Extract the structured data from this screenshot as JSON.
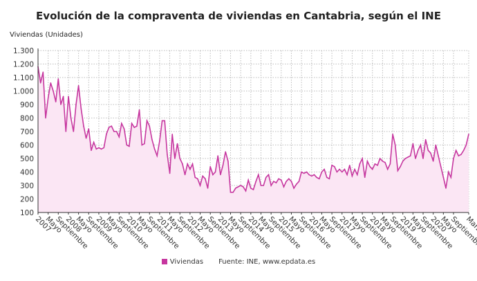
{
  "chart_data": {
    "type": "line",
    "title": "Evolución de la compraventa de viviendas en Cantabria, según el INE",
    "ylabel": "Viviendas (Unidades)",
    "xlabel": "",
    "ylim": [
      100,
      1300
    ],
    "yticks": [
      "100",
      "200",
      "300",
      "400",
      "500",
      "600",
      "700",
      "800",
      "900",
      "1.000",
      "1.100",
      "1.200",
      "1.300"
    ],
    "ytick_values": [
      100,
      200,
      300,
      400,
      500,
      600,
      700,
      800,
      900,
      1000,
      1100,
      1200,
      1300
    ],
    "x_start": "2007-01",
    "x_end": "2021-03",
    "frequency": "monthly",
    "xticks": [
      "2007",
      "Mayo",
      "Septiembre",
      "2008",
      "Mayo",
      "Septiembre",
      "2009",
      "Mayo",
      "Septiembre",
      "2010",
      "Mayo",
      "Septiembre",
      "2011",
      "Mayo",
      "Septiembre",
      "2012",
      "Mayo",
      "Septiembre",
      "2013",
      "Mayo",
      "Septiembre",
      "2014",
      "Mayo",
      "Septiembre",
      "2015",
      "Mayo",
      "Septiembre",
      "2016",
      "Mayo",
      "Septiembre",
      "2017",
      "Mayo",
      "Septiembre",
      "2018",
      "Mayo",
      "Septiembre",
      "2019",
      "Mayo",
      "Septiembre",
      "2020",
      "Mayo",
      "Septiembre",
      "Marzo"
    ],
    "grid": true,
    "legend_position": "bottom",
    "series": [
      {
        "name": "Viviendas",
        "color": "#c6369f",
        "values": [
          1180,
          1060,
          1140,
          800,
          950,
          1060,
          1000,
          920,
          1090,
          900,
          960,
          700,
          960,
          800,
          700,
          900,
          1040,
          870,
          740,
          650,
          720,
          560,
          620,
          570,
          580,
          570,
          580,
          680,
          730,
          740,
          700,
          700,
          660,
          760,
          720,
          600,
          590,
          760,
          730,
          740,
          860,
          600,
          610,
          780,
          740,
          640,
          570,
          520,
          630,
          780,
          780,
          530,
          390,
          680,
          500,
          610,
          500,
          460,
          380,
          460,
          420,
          460,
          360,
          350,
          300,
          370,
          350,
          280,
          440,
          380,
          400,
          520,
          380,
          450,
          550,
          480,
          250,
          250,
          280,
          290,
          300,
          290,
          260,
          340,
          280,
          270,
          330,
          380,
          300,
          300,
          360,
          380,
          300,
          330,
          320,
          350,
          340,
          290,
          330,
          350,
          330,
          280,
          310,
          330,
          400,
          390,
          400,
          380,
          370,
          380,
          360,
          350,
          400,
          420,
          360,
          350,
          450,
          440,
          400,
          420,
          400,
          420,
          380,
          450,
          370,
          420,
          380,
          460,
          500,
          360,
          480,
          440,
          420,
          460,
          450,
          500,
          480,
          470,
          420,
          460,
          680,
          600,
          410,
          440,
          480,
          500,
          510,
          520,
          610,
          500,
          560,
          600,
          500,
          640,
          560,
          540,
          480,
          600,
          520,
          440,
          360,
          280,
          400,
          360,
          500,
          560,
          520,
          530,
          560,
          600,
          680
        ]
      }
    ]
  },
  "legend": {
    "label": "Viviendas",
    "source": "Fuente: INE, www.epdata.es"
  }
}
